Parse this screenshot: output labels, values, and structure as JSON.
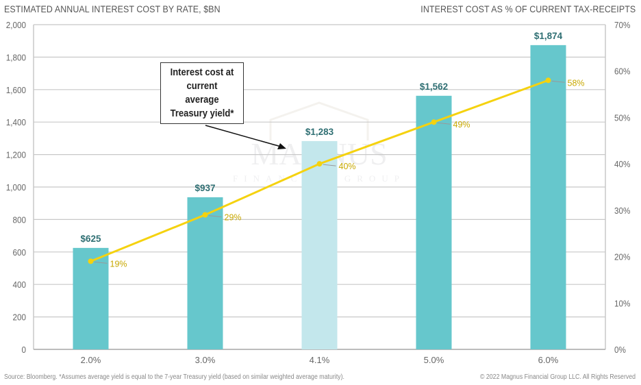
{
  "chart_data": {
    "type": "bar+line",
    "title_left": "ESTIMATED ANNUAL INTEREST COST BY RATE, $BN",
    "title_right": "INTEREST COST AS % OF CURRENT TAX-RECEIPTS",
    "categories": [
      "2.0%",
      "3.0%",
      "4.1%",
      "5.0%",
      "6.0%"
    ],
    "series": [
      {
        "name": "Estimated annual interest cost ($BN)",
        "type": "bar",
        "axis": "left",
        "values": [
          625,
          937,
          1283,
          1562,
          1874
        ],
        "labels": [
          "$625",
          "$937",
          "$1,283",
          "$1,562",
          "$1,874"
        ],
        "highlight_index": 2
      },
      {
        "name": "Interest cost as % of current tax-receipts",
        "type": "line",
        "axis": "right",
        "values": [
          19,
          29,
          40,
          49,
          58
        ],
        "labels": [
          "19%",
          "29%",
          "40%",
          "49%",
          "58%"
        ]
      }
    ],
    "left_axis": {
      "ylim": [
        0,
        2000
      ],
      "ticks": [
        "0",
        "200",
        "400",
        "600",
        "800",
        "1,000",
        "1,200",
        "1,400",
        "1,600",
        "1,800",
        "2,000"
      ]
    },
    "right_axis": {
      "ylim": [
        0,
        70
      ],
      "ticks": [
        "0%",
        "10%",
        "20%",
        "30%",
        "40%",
        "50%",
        "60%",
        "70%"
      ]
    },
    "grid": true,
    "annotation": {
      "lines": [
        "Interest cost at",
        "current",
        "average",
        "Treasury yield*"
      ],
      "points_to_index": 2
    },
    "colors": {
      "bar": "#66c7cc",
      "bar_highlight": "#c3e7ec",
      "bar_label": "#2f6f73",
      "line": "#f5d20f",
      "line_label": "#c8a800",
      "grid": "#c8c8c8",
      "axis_text": "#666666"
    }
  },
  "watermark": {
    "name": "MAGNUS",
    "sub": "FINANCIAL GROUP"
  },
  "footer": {
    "source": "Source: Bloomberg. *Assumes average yield is equal to the 7-year Treasury yield (based on similar weighted average maturity).",
    "copyright": "© 2022 Magnus Financial Group LLC. All Rights Reserved"
  }
}
